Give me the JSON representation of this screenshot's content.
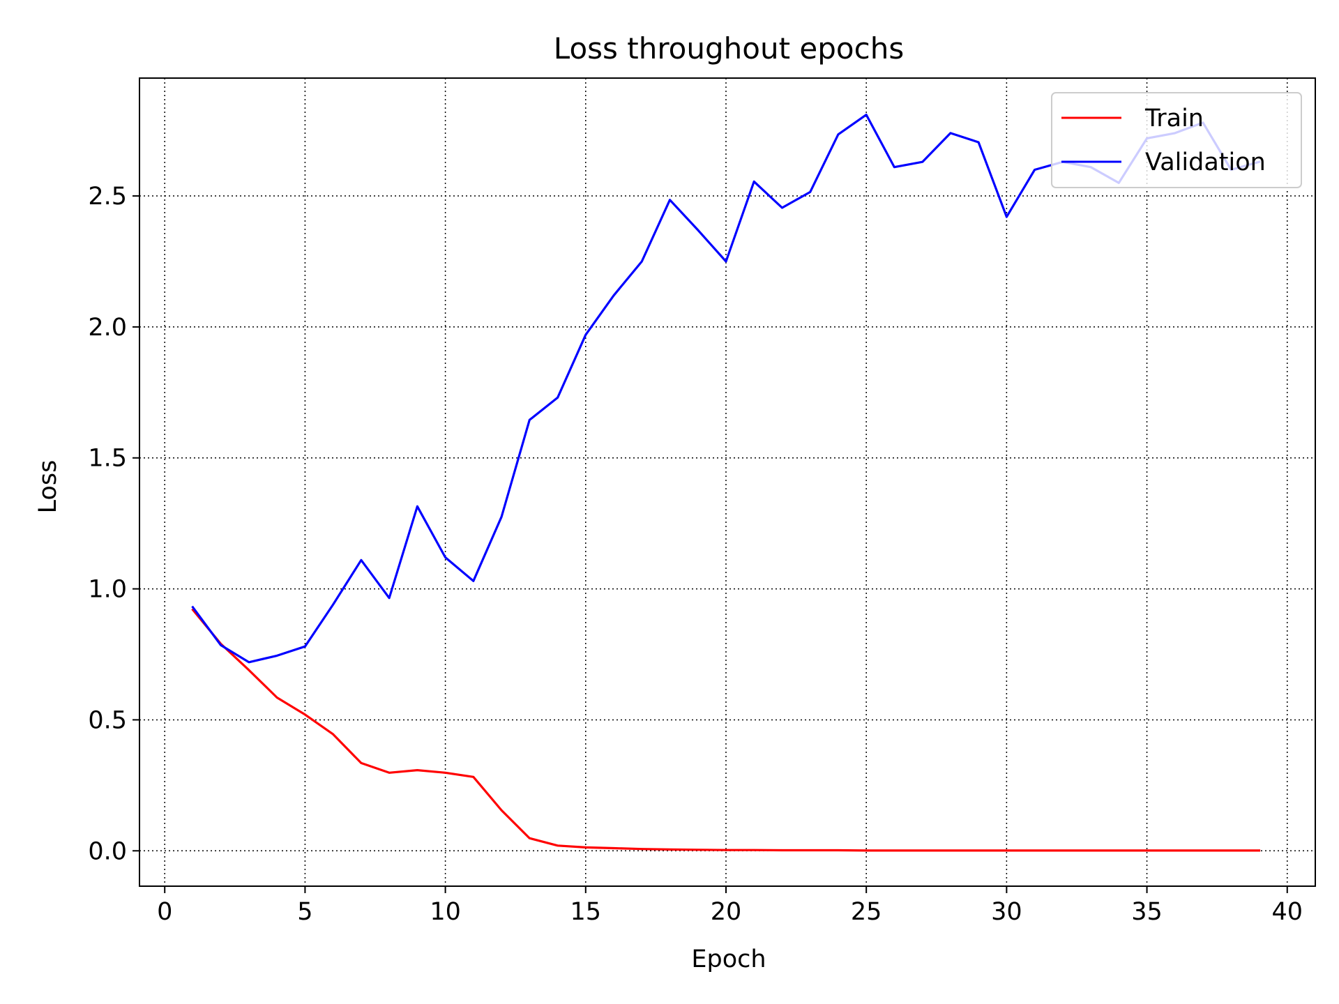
{
  "chart_data": {
    "type": "line",
    "title": "Loss throughout epochs",
    "xlabel": "Epoch",
    "ylabel": "Loss",
    "xlim": [
      -0.9,
      41
    ],
    "ylim": [
      -0.135,
      2.95
    ],
    "xticks": [
      0,
      5,
      10,
      15,
      20,
      25,
      30,
      35,
      40
    ],
    "yticks": [
      0.0,
      0.5,
      1.0,
      1.5,
      2.0,
      2.5
    ],
    "ytick_labels": [
      "0.0",
      "0.5",
      "1.0",
      "1.5",
      "2.0",
      "2.5"
    ],
    "grid": true,
    "legend_position": "top-right",
    "x": [
      1,
      2,
      3,
      4,
      5,
      6,
      7,
      8,
      9,
      10,
      11,
      12,
      13,
      14,
      15,
      16,
      17,
      18,
      19,
      20,
      21,
      22,
      23,
      24,
      25,
      26,
      27,
      28,
      29,
      30,
      31,
      32,
      33,
      34,
      35,
      36,
      37,
      38,
      39
    ],
    "series": [
      {
        "name": "Train",
        "color": "#ff0000",
        "values": [
          0.92,
          0.79,
          0.69,
          0.585,
          0.52,
          0.445,
          0.335,
          0.298,
          0.308,
          0.298,
          0.282,
          0.155,
          0.048,
          0.02,
          0.013,
          0.01,
          0.007,
          0.005,
          0.004,
          0.003,
          0.003,
          0.002,
          0.002,
          0.002,
          0.001,
          0.001,
          0.001,
          0.001,
          0.001,
          0.001,
          0.001,
          0.001,
          0.001,
          0.001,
          0.001,
          0.001,
          0.001,
          0.001,
          0.001
        ]
      },
      {
        "name": "Validation",
        "color": "#0000ff",
        "values": [
          0.93,
          0.785,
          0.72,
          0.745,
          0.78,
          0.94,
          1.11,
          0.965,
          1.315,
          1.12,
          1.03,
          1.275,
          1.645,
          1.73,
          1.97,
          2.12,
          2.25,
          2.485,
          2.37,
          2.25,
          2.555,
          2.455,
          2.515,
          2.735,
          2.81,
          2.61,
          2.63,
          2.74,
          2.705,
          2.42,
          2.6,
          2.63,
          2.61,
          2.55,
          2.72,
          2.74,
          2.78,
          2.6,
          2.63
        ]
      }
    ]
  }
}
